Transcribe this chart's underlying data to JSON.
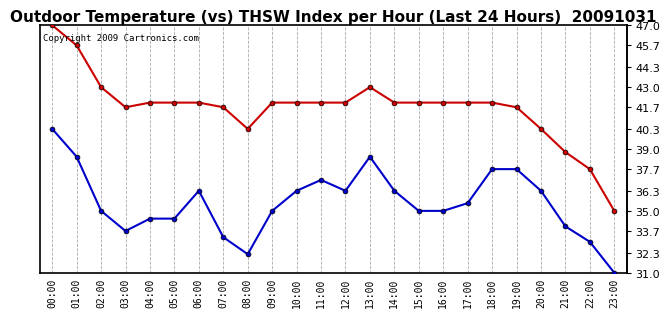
{
  "title": "Outdoor Temperature (vs) THSW Index per Hour (Last 24 Hours)  20091031",
  "copyright_text": "Copyright 2009 Cartronics.com",
  "hours": [
    "00:00",
    "01:00",
    "02:00",
    "03:00",
    "04:00",
    "05:00",
    "06:00",
    "07:00",
    "08:00",
    "09:00",
    "10:00",
    "11:00",
    "12:00",
    "13:00",
    "14:00",
    "15:00",
    "16:00",
    "17:00",
    "18:00",
    "19:00",
    "20:00",
    "21:00",
    "22:00",
    "23:00"
  ],
  "thsw": [
    47.0,
    45.7,
    43.0,
    41.7,
    42.0,
    42.0,
    42.0,
    41.7,
    40.3,
    42.0,
    42.0,
    42.0,
    42.0,
    43.0,
    42.0,
    42.0,
    42.0,
    42.0,
    42.0,
    41.7,
    40.3,
    38.8,
    37.7,
    35.0
  ],
  "temp": [
    40.3,
    38.5,
    35.0,
    33.7,
    34.5,
    34.5,
    36.3,
    33.3,
    32.2,
    35.0,
    36.3,
    37.0,
    36.3,
    38.5,
    36.3,
    35.0,
    35.0,
    35.5,
    37.7,
    37.7,
    36.3,
    34.0,
    33.0,
    31.0
  ],
  "thsw_color": "#cc0000",
  "temp_color": "#0000cc",
  "background_color": "#ffffff",
  "grid_color": "#aaaaaa",
  "ylim": [
    31.0,
    47.0
  ],
  "yticks": [
    31.0,
    32.3,
    33.7,
    35.0,
    36.3,
    37.7,
    39.0,
    40.3,
    41.7,
    43.0,
    44.3,
    45.7,
    47.0
  ],
  "title_fontsize": 11,
  "copyright_fontsize": 6.5,
  "marker_size": 3.5,
  "linewidth": 1.5
}
